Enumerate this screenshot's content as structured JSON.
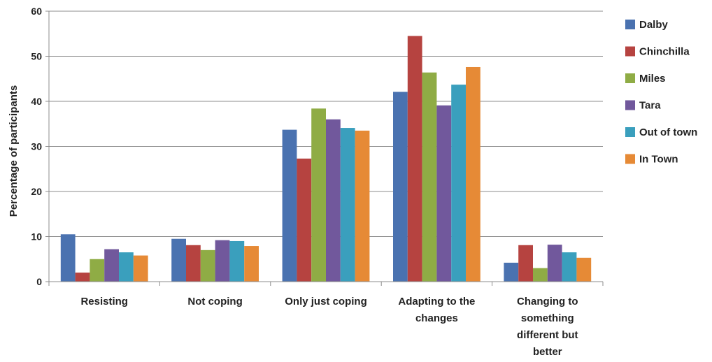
{
  "chart_data": {
    "type": "bar",
    "title": "",
    "xlabel": "",
    "ylabel": "Percentage of participants",
    "ylim": [
      0,
      60
    ],
    "yticks": [
      0,
      10,
      20,
      30,
      40,
      50,
      60
    ],
    "grid": true,
    "legend_position": "right",
    "categories": [
      [
        "Resisting"
      ],
      [
        "Not coping"
      ],
      [
        "Only just coping"
      ],
      [
        "Adapting to the",
        "changes"
      ],
      [
        "Changing to",
        "something",
        "different but",
        "better"
      ]
    ],
    "series": [
      {
        "name": "Dalby",
        "color": "#4a72b0",
        "values": [
          10.5,
          9.5,
          33.7,
          42.1,
          4.2
        ]
      },
      {
        "name": "Chinchilla",
        "color": "#b64340",
        "values": [
          2.0,
          8.1,
          27.3,
          54.5,
          8.1
        ]
      },
      {
        "name": "Miles",
        "color": "#8fac45",
        "values": [
          5.0,
          7.0,
          38.4,
          46.4,
          3.0
        ]
      },
      {
        "name": "Tara",
        "color": "#71589c",
        "values": [
          7.2,
          9.2,
          36.0,
          39.1,
          8.2
        ]
      },
      {
        "name": "Out of town",
        "color": "#3a9fbd",
        "values": [
          6.5,
          9.0,
          34.1,
          43.7,
          6.5
        ]
      },
      {
        "name": "In Town",
        "color": "#e68a36",
        "values": [
          5.8,
          7.9,
          33.5,
          47.6,
          5.3
        ]
      }
    ]
  }
}
